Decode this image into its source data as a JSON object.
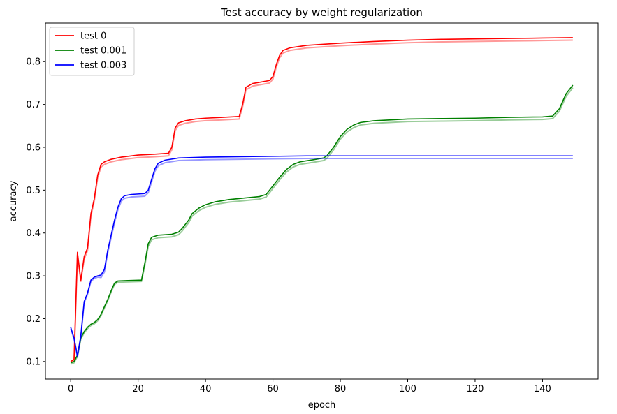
{
  "chart_data": {
    "type": "line",
    "title": "Test accuracy by weight regularization",
    "xlabel": "epoch",
    "ylabel": "accuracy",
    "xlim": [
      -7.5,
      156.5
    ],
    "ylim": [
      0.059,
      0.89
    ],
    "xticks": [
      0,
      20,
      40,
      60,
      80,
      100,
      120,
      140
    ],
    "yticks": [
      0.1,
      0.2,
      0.3,
      0.4,
      0.5,
      0.6,
      0.7,
      0.8
    ],
    "grid": false,
    "legend_position": "top-left",
    "series": [
      {
        "name": "test 0",
        "color": "#ff0000",
        "points": [
          [
            0,
            0.1
          ],
          [
            1,
            0.105
          ],
          [
            2,
            0.355
          ],
          [
            3,
            0.29
          ],
          [
            4,
            0.345
          ],
          [
            5,
            0.365
          ],
          [
            6,
            0.445
          ],
          [
            7,
            0.48
          ],
          [
            8,
            0.535
          ],
          [
            9,
            0.56
          ],
          [
            10,
            0.566
          ],
          [
            12,
            0.572
          ],
          [
            15,
            0.577
          ],
          [
            20,
            0.582
          ],
          [
            25,
            0.584
          ],
          [
            29,
            0.586
          ],
          [
            30,
            0.6
          ],
          [
            31,
            0.645
          ],
          [
            32,
            0.657
          ],
          [
            34,
            0.662
          ],
          [
            37,
            0.666
          ],
          [
            40,
            0.668
          ],
          [
            45,
            0.67
          ],
          [
            50,
            0.672
          ],
          [
            51,
            0.7
          ],
          [
            52,
            0.74
          ],
          [
            54,
            0.749
          ],
          [
            57,
            0.753
          ],
          [
            59,
            0.756
          ],
          [
            60,
            0.765
          ],
          [
            61,
            0.793
          ],
          [
            62,
            0.815
          ],
          [
            63,
            0.826
          ],
          [
            65,
            0.832
          ],
          [
            70,
            0.838
          ],
          [
            80,
            0.843
          ],
          [
            90,
            0.847
          ],
          [
            100,
            0.85
          ],
          [
            110,
            0.852
          ],
          [
            120,
            0.853
          ],
          [
            130,
            0.854
          ],
          [
            140,
            0.855
          ],
          [
            149,
            0.856
          ]
        ]
      },
      {
        "name": "test 0.001",
        "color": "#008000",
        "points": [
          [
            0,
            0.097
          ],
          [
            1,
            0.1
          ],
          [
            2,
            0.115
          ],
          [
            3,
            0.155
          ],
          [
            4,
            0.17
          ],
          [
            5,
            0.18
          ],
          [
            6,
            0.187
          ],
          [
            7,
            0.191
          ],
          [
            8,
            0.198
          ],
          [
            9,
            0.21
          ],
          [
            10,
            0.228
          ],
          [
            11,
            0.245
          ],
          [
            12,
            0.265
          ],
          [
            13,
            0.283
          ],
          [
            14,
            0.288
          ],
          [
            17,
            0.289
          ],
          [
            21,
            0.29
          ],
          [
            22,
            0.33
          ],
          [
            23,
            0.375
          ],
          [
            24,
            0.39
          ],
          [
            26,
            0.395
          ],
          [
            30,
            0.397
          ],
          [
            32,
            0.402
          ],
          [
            33,
            0.41
          ],
          [
            35,
            0.43
          ],
          [
            36,
            0.445
          ],
          [
            38,
            0.458
          ],
          [
            40,
            0.466
          ],
          [
            43,
            0.473
          ],
          [
            47,
            0.478
          ],
          [
            52,
            0.482
          ],
          [
            56,
            0.485
          ],
          [
            58,
            0.49
          ],
          [
            60,
            0.51
          ],
          [
            62,
            0.53
          ],
          [
            64,
            0.548
          ],
          [
            66,
            0.56
          ],
          [
            68,
            0.566
          ],
          [
            72,
            0.571
          ],
          [
            75,
            0.575
          ],
          [
            76,
            0.58
          ],
          [
            78,
            0.6
          ],
          [
            80,
            0.625
          ],
          [
            82,
            0.642
          ],
          [
            84,
            0.652
          ],
          [
            86,
            0.658
          ],
          [
            90,
            0.662
          ],
          [
            100,
            0.666
          ],
          [
            110,
            0.667
          ],
          [
            120,
            0.668
          ],
          [
            130,
            0.67
          ],
          [
            140,
            0.671
          ],
          [
            143,
            0.673
          ],
          [
            145,
            0.69
          ],
          [
            147,
            0.725
          ],
          [
            149,
            0.745
          ]
        ]
      },
      {
        "name": "test 0.003",
        "color": "#0000ff",
        "points": [
          [
            0,
            0.18
          ],
          [
            1,
            0.155
          ],
          [
            2,
            0.113
          ],
          [
            3,
            0.16
          ],
          [
            4,
            0.24
          ],
          [
            5,
            0.26
          ],
          [
            6,
            0.29
          ],
          [
            7,
            0.297
          ],
          [
            8,
            0.3
          ],
          [
            9,
            0.302
          ],
          [
            10,
            0.315
          ],
          [
            11,
            0.36
          ],
          [
            12,
            0.395
          ],
          [
            13,
            0.43
          ],
          [
            14,
            0.46
          ],
          [
            15,
            0.48
          ],
          [
            16,
            0.487
          ],
          [
            18,
            0.49
          ],
          [
            22,
            0.492
          ],
          [
            23,
            0.5
          ],
          [
            24,
            0.525
          ],
          [
            25,
            0.55
          ],
          [
            26,
            0.563
          ],
          [
            28,
            0.57
          ],
          [
            32,
            0.575
          ],
          [
            40,
            0.577
          ],
          [
            50,
            0.578
          ],
          [
            60,
            0.579
          ],
          [
            70,
            0.58
          ],
          [
            80,
            0.58
          ],
          [
            100,
            0.58
          ],
          [
            120,
            0.58
          ],
          [
            149,
            0.58
          ]
        ]
      }
    ]
  }
}
